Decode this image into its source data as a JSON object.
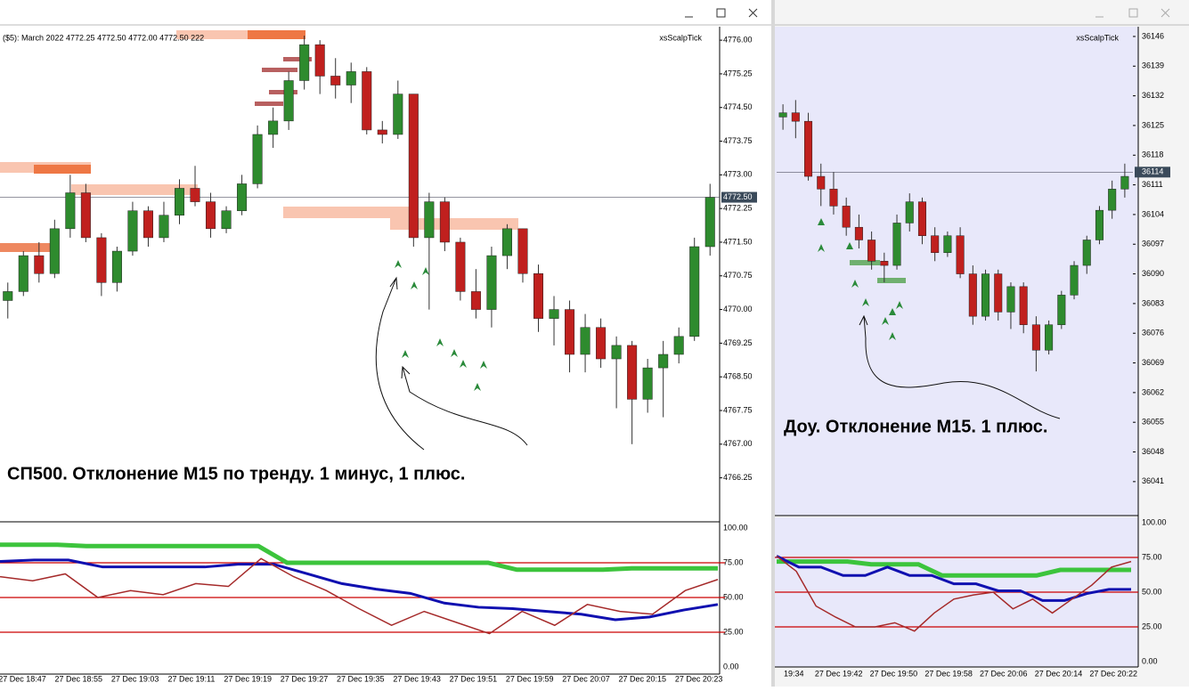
{
  "left_window": {
    "header": "($5): March 2022  4772.25 4772.50 4772.00 4772.50  222",
    "indicator_name": "xsScalpTick",
    "price_chart": {
      "type": "candlestick",
      "ylim": [
        4765.29,
        4776.3
      ],
      "yticks": [
        {
          "value": 4776,
          "label": "4776.00"
        },
        {
          "value": 4775.25,
          "label": "4775.25"
        },
        {
          "value": 4774.5,
          "label": "4774.50"
        },
        {
          "value": 4773.75,
          "label": "4773.75"
        },
        {
          "value": 4773,
          "label": "4773.00"
        },
        {
          "value": 4772.25,
          "label": "4772.25"
        },
        {
          "value": 4771.5,
          "label": "4771.50"
        },
        {
          "value": 4770.75,
          "label": "4770.75"
        },
        {
          "value": 4770,
          "label": "4770.00"
        },
        {
          "value": 4769.25,
          "label": "4769.25"
        },
        {
          "value": 4768.5,
          "label": "4768.50"
        },
        {
          "value": 4767.75,
          "label": "4767.75"
        },
        {
          "value": 4767,
          "label": "4767.00"
        },
        {
          "value": 4766.25,
          "label": "4766.25"
        }
      ],
      "current_price": {
        "value": 4772.5,
        "label": "4772.50"
      },
      "candles": [
        [
          4770.2,
          4770.6,
          4769.8,
          4770.4
        ],
        [
          4770.4,
          4771.3,
          4770.3,
          4771.2
        ],
        [
          4771.2,
          4771.5,
          4770.6,
          4770.8
        ],
        [
          4770.8,
          4772.0,
          4770.7,
          4771.8
        ],
        [
          4771.8,
          4773.0,
          4771.6,
          4772.6
        ],
        [
          4772.6,
          4772.8,
          4771.5,
          4771.6
        ],
        [
          4771.6,
          4771.7,
          4770.3,
          4770.6
        ],
        [
          4770.6,
          4771.4,
          4770.4,
          4771.3
        ],
        [
          4771.3,
          4772.4,
          4771.2,
          4772.2
        ],
        [
          4772.2,
          4772.3,
          4771.4,
          4771.6
        ],
        [
          4771.6,
          4772.4,
          4771.5,
          4772.1
        ],
        [
          4772.1,
          4772.9,
          4771.9,
          4772.7
        ],
        [
          4772.7,
          4773.2,
          4772.3,
          4772.4
        ],
        [
          4772.4,
          4772.6,
          4771.6,
          4771.8
        ],
        [
          4771.8,
          4772.3,
          4771.7,
          4772.2
        ],
        [
          4772.2,
          4773.0,
          4772.1,
          4772.8
        ],
        [
          4772.8,
          4774.1,
          4772.7,
          4773.9
        ],
        [
          4773.9,
          4774.5,
          4773.6,
          4774.2
        ],
        [
          4774.2,
          4775.3,
          4774.0,
          4775.1
        ],
        [
          4775.1,
          4776.1,
          4774.9,
          4775.9
        ],
        [
          4775.9,
          4776.0,
          4774.8,
          4775.2
        ],
        [
          4775.2,
          4775.6,
          4774.7,
          4775.0
        ],
        [
          4775.0,
          4775.5,
          4774.6,
          4775.3
        ],
        [
          4775.3,
          4775.4,
          4773.9,
          4774.0
        ],
        [
          4774.0,
          4774.2,
          4773.7,
          4773.9
        ],
        [
          4773.9,
          4775.1,
          4773.8,
          4774.8
        ],
        [
          4774.8,
          4774.8,
          4771.4,
          4771.6
        ],
        [
          4771.6,
          4772.6,
          4770.0,
          4772.4
        ],
        [
          4772.4,
          4772.5,
          4771.3,
          4771.5
        ],
        [
          4771.5,
          4771.6,
          4770.2,
          4770.4
        ],
        [
          4770.4,
          4770.9,
          4769.8,
          4770.0
        ],
        [
          4770.0,
          4771.4,
          4769.6,
          4771.2
        ],
        [
          4771.2,
          4771.9,
          4770.9,
          4771.8
        ],
        [
          4771.8,
          4771.8,
          4770.6,
          4770.8
        ],
        [
          4770.8,
          4771.0,
          4769.5,
          4769.8
        ],
        [
          4769.8,
          4770.3,
          4769.2,
          4770.0
        ],
        [
          4770.0,
          4770.2,
          4768.6,
          4769.0
        ],
        [
          4769.0,
          4769.9,
          4768.6,
          4769.6
        ],
        [
          4769.6,
          4769.8,
          4768.7,
          4768.9
        ],
        [
          4768.9,
          4769.4,
          4767.8,
          4769.2
        ],
        [
          4769.2,
          4769.3,
          4767.0,
          4768.0
        ],
        [
          4768.0,
          4768.9,
          4767.7,
          4768.7
        ],
        [
          4768.7,
          4769.3,
          4767.6,
          4769.0
        ],
        [
          4769.0,
          4769.6,
          4768.8,
          4769.4
        ],
        [
          4769.4,
          4771.6,
          4769.3,
          4771.4
        ],
        [
          4771.4,
          4772.8,
          4771.2,
          4772.5
        ]
      ]
    },
    "indicator": {
      "type": "line",
      "ylim": [
        -5.1,
        103.2
      ],
      "yticks": [
        {
          "value": 100,
          "label": "100.00"
        },
        {
          "value": 75,
          "label": "75.00"
        },
        {
          "value": 50,
          "label": "50.00"
        },
        {
          "value": 25,
          "label": "25.00"
        },
        {
          "value": 0,
          "label": "0.00"
        }
      ],
      "levels": [
        75,
        50,
        25
      ],
      "series": [
        {
          "color": "#3cc43c",
          "width": 5,
          "values": [
            88,
            88,
            88,
            87,
            87,
            87,
            87,
            87,
            87,
            87,
            75,
            75,
            75,
            75,
            75,
            75,
            75,
            75,
            70,
            70,
            70,
            70,
            71,
            71,
            71,
            71
          ]
        },
        {
          "color": "#1010b0",
          "width": 3,
          "values": [
            76,
            77,
            77,
            72,
            72,
            72,
            72,
            74,
            74,
            67,
            60,
            56,
            53,
            46,
            43,
            42,
            40,
            38,
            34,
            36,
            41,
            45
          ]
        },
        {
          "color": "#a52a2a",
          "width": 1.5,
          "values": [
            65,
            62,
            67,
            50,
            55,
            52,
            60,
            58,
            78,
            65,
            55,
            42,
            30,
            40,
            32,
            24,
            40,
            30,
            45,
            40,
            38,
            55,
            63
          ]
        }
      ]
    },
    "time_labels": [
      "27 Dec 18:47",
      "27 Dec 18:55",
      "27 Dec 19:03",
      "27 Dec 19:11",
      "27 Dec 19:19",
      "27 Dec 19:27",
      "27 Dec 19:35",
      "27 Dec 19:43",
      "27 Dec 19:51",
      "27 Dec 19:59",
      "27 Dec 20:07",
      "27 Dec 20:15",
      "27 Dec 20:23"
    ],
    "annotation": "СП500. Отклонение M15 по тренду. 1 минус, 1 плюс."
  },
  "right_window": {
    "indicator_name": "xsScalpTick",
    "price_chart": {
      "type": "candlestick",
      "ylim": [
        36033.2,
        36148.3
      ],
      "yticks": [
        36146,
        36139,
        36132,
        36125,
        36118,
        36111,
        36104,
        36097,
        36090,
        36083,
        36076,
        36069,
        36062,
        36055,
        36048,
        36041
      ],
      "current_price": {
        "value": 36114,
        "label": "36114"
      },
      "candles": [
        [
          36127,
          36130,
          36124,
          36128
        ],
        [
          36128,
          36131,
          36122,
          36126
        ],
        [
          36126,
          36128,
          36112,
          36113
        ],
        [
          36113,
          36116,
          36106,
          36110
        ],
        [
          36110,
          36114,
          36104,
          36106
        ],
        [
          36106,
          36108,
          36099,
          36101
        ],
        [
          36101,
          36104,
          36096,
          36098
        ],
        [
          36098,
          36100,
          36091,
          36093
        ],
        [
          36093,
          36095,
          36088,
          36092
        ],
        [
          36092,
          36104,
          36091,
          36102
        ],
        [
          36102,
          36109,
          36100,
          36107
        ],
        [
          36107,
          36108,
          36097,
          36099
        ],
        [
          36099,
          36101,
          36093,
          36095
        ],
        [
          36095,
          36100,
          36094,
          36099
        ],
        [
          36099,
          36101,
          36089,
          36090
        ],
        [
          36090,
          36092,
          36078,
          36080
        ],
        [
          36080,
          36091,
          36079,
          36090
        ],
        [
          36090,
          36091,
          36079,
          36081
        ],
        [
          36081,
          36088,
          36077,
          36087
        ],
        [
          36087,
          36088,
          36076,
          36078
        ],
        [
          36078,
          36080,
          36067,
          36072
        ],
        [
          36072,
          36079,
          36071,
          36078
        ],
        [
          36078,
          36086,
          36077,
          36085
        ],
        [
          36085,
          36093,
          36084,
          36092
        ],
        [
          36092,
          36099,
          36090,
          36098
        ],
        [
          36098,
          36106,
          36097,
          36105
        ],
        [
          36105,
          36112,
          36103,
          36110
        ],
        [
          36110,
          36116,
          36108,
          36113
        ]
      ]
    },
    "indicator": {
      "type": "line",
      "ylim": [
        -3.8,
        103.8
      ],
      "yticks": [
        {
          "value": 100,
          "label": "100.00"
        },
        {
          "value": 75,
          "label": "75.00"
        },
        {
          "value": 50,
          "label": "50.00"
        },
        {
          "value": 25,
          "label": "25.00"
        },
        {
          "value": 0,
          "label": "0.00"
        }
      ],
      "levels": [
        75,
        50,
        25
      ],
      "series": [
        {
          "color": "#3cc43c",
          "width": 5,
          "values": [
            72,
            72,
            72,
            72,
            70,
            70,
            70,
            62,
            62,
            62,
            62,
            62,
            66,
            66,
            66,
            66
          ]
        },
        {
          "color": "#1010b0",
          "width": 3,
          "values": [
            76,
            68,
            68,
            62,
            62,
            68,
            62,
            62,
            56,
            56,
            51,
            51,
            44,
            44,
            49,
            52,
            52
          ]
        },
        {
          "color": "#a52a2a",
          "width": 1.5,
          "values": [
            76,
            65,
            40,
            32,
            25,
            25,
            28,
            22,
            35,
            45,
            48,
            50,
            38,
            45,
            35,
            45,
            55,
            68,
            72
          ]
        }
      ]
    },
    "time_labels": [
      "19:34",
      "27 Dec 19:42",
      "27 Dec 19:50",
      "27 Dec 19:58",
      "27 Dec 20:06",
      "27 Dec 20:14",
      "27 Dec 20:22"
    ],
    "annotation": "Доу. Отклонение М15. 1 плюс."
  }
}
